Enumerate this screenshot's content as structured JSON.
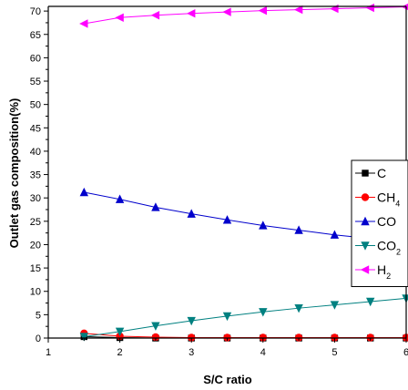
{
  "chart_data": {
    "type": "line",
    "xlabel": "S/C ratio",
    "ylabel": "Outlet gas composition(%)",
    "xlim": [
      1,
      6
    ],
    "ylim": [
      0,
      71
    ],
    "xticks": [
      "1",
      "2",
      "3",
      "4",
      "5",
      "6"
    ],
    "yticks": [
      "0",
      "5",
      "10",
      "15",
      "20",
      "25",
      "30",
      "35",
      "40",
      "45",
      "50",
      "55",
      "60",
      "65",
      "70"
    ],
    "x": [
      1.5,
      2.0,
      2.5,
      3.0,
      3.5,
      4.0,
      4.5,
      5.0,
      5.5,
      6.0
    ],
    "grid": false,
    "legend_position": "right",
    "series": [
      {
        "name": "C",
        "label_main": "C",
        "label_sub": "",
        "marker": "square",
        "color": "#000000",
        "values": [
          0.3,
          0.1,
          0.0,
          0.0,
          0.0,
          0.0,
          0.0,
          0.0,
          0.0,
          0.0
        ]
      },
      {
        "name": "CH4",
        "label_main": "CH",
        "label_sub": "4",
        "marker": "circle",
        "color": "#ff0000",
        "values": [
          1.0,
          0.4,
          0.2,
          0.1,
          0.1,
          0.1,
          0.1,
          0.1,
          0.1,
          0.1
        ]
      },
      {
        "name": "CO",
        "label_main": "CO",
        "label_sub": "",
        "marker": "triangle-up",
        "color": "#0000cc",
        "values": [
          31.2,
          29.7,
          28.0,
          26.6,
          25.3,
          24.1,
          23.1,
          22.1,
          21.3,
          20.4
        ]
      },
      {
        "name": "CO2",
        "label_main": "CO",
        "label_sub": "2",
        "marker": "triangle-down",
        "color": "#008080",
        "values": [
          0.3,
          1.4,
          2.6,
          3.7,
          4.7,
          5.6,
          6.4,
          7.1,
          7.8,
          8.5
        ]
      },
      {
        "name": "H2",
        "label_main": "H",
        "label_sub": "2",
        "marker": "triangle-left",
        "color": "#ff00ff",
        "values": [
          67.3,
          68.6,
          69.1,
          69.5,
          69.8,
          70.1,
          70.3,
          70.5,
          70.7,
          70.9
        ]
      }
    ]
  }
}
